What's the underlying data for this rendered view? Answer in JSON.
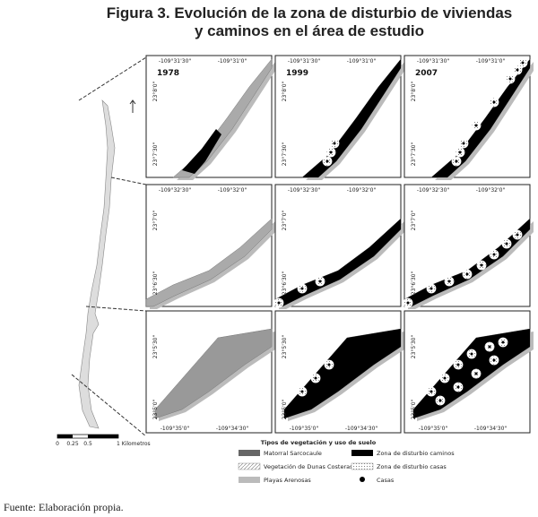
{
  "title": [
    "Figura 3. Evolución de la zona de disturbio de viviendas",
    "y caminos en el área de estudio"
  ],
  "years": [
    "1978",
    "1999",
    "2007"
  ],
  "rows": [
    {
      "x_labels": [
        "-109°31'30\"",
        "-109°31'0\""
      ],
      "y_labels": [
        "23°8'0\"",
        "23°7'30\""
      ]
    },
    {
      "x_labels": [
        "-109°32'30\"",
        "-109°32'0\""
      ],
      "y_labels": [
        "23°7'0\"",
        "23°6'30\""
      ]
    },
    {
      "x_labels": [
        "-109°35'0\"",
        "-109°34'30\""
      ],
      "y_labels": [
        "23°5'30\"",
        "23°5'0\""
      ]
    }
  ],
  "scale_bar": [
    "0",
    "0.25",
    "0.5",
    "1 Kilometros"
  ],
  "legend": {
    "title": "Tipos de vegetación y uso de suelo",
    "items": [
      "Matorral Sarcocaule",
      "Vegetación de Dunas Costeras",
      "Playas Arenosas",
      "Zona de disturbio caminos",
      "Zona de disturbio casas",
      "Casas"
    ]
  },
  "source": "Fuente: Elaboración propia."
}
